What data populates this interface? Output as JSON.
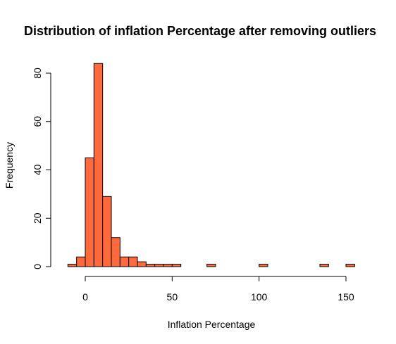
{
  "chart_data": {
    "type": "bar",
    "title": "Distribution of inflation Percentage after removing outliers",
    "xlabel": "Inflation Percentage",
    "ylabel": "Frequency",
    "bar_color": "#FF6A3D",
    "bin_width": 5,
    "xlim": [
      -10,
      155
    ],
    "ylim": [
      0,
      84
    ],
    "x_ticks": [
      0,
      50,
      100,
      150
    ],
    "y_ticks": [
      0,
      20,
      40,
      60,
      80
    ],
    "bins": [
      {
        "start": -10,
        "end": -5,
        "count": 1
      },
      {
        "start": -5,
        "end": 0,
        "count": 4
      },
      {
        "start": 0,
        "end": 5,
        "count": 45
      },
      {
        "start": 5,
        "end": 10,
        "count": 84
      },
      {
        "start": 10,
        "end": 15,
        "count": 29
      },
      {
        "start": 15,
        "end": 20,
        "count": 12
      },
      {
        "start": 20,
        "end": 25,
        "count": 4
      },
      {
        "start": 25,
        "end": 30,
        "count": 4
      },
      {
        "start": 30,
        "end": 35,
        "count": 2
      },
      {
        "start": 35,
        "end": 40,
        "count": 1
      },
      {
        "start": 40,
        "end": 45,
        "count": 1
      },
      {
        "start": 45,
        "end": 50,
        "count": 1
      },
      {
        "start": 50,
        "end": 55,
        "count": 1
      },
      {
        "start": 55,
        "end": 60,
        "count": 0
      },
      {
        "start": 60,
        "end": 65,
        "count": 0
      },
      {
        "start": 65,
        "end": 70,
        "count": 0
      },
      {
        "start": 70,
        "end": 75,
        "count": 1
      },
      {
        "start": 75,
        "end": 80,
        "count": 0
      },
      {
        "start": 80,
        "end": 85,
        "count": 0
      },
      {
        "start": 85,
        "end": 90,
        "count": 0
      },
      {
        "start": 90,
        "end": 95,
        "count": 0
      },
      {
        "start": 95,
        "end": 100,
        "count": 0
      },
      {
        "start": 100,
        "end": 105,
        "count": 1
      },
      {
        "start": 105,
        "end": 110,
        "count": 0
      },
      {
        "start": 110,
        "end": 115,
        "count": 0
      },
      {
        "start": 115,
        "end": 120,
        "count": 0
      },
      {
        "start": 120,
        "end": 125,
        "count": 0
      },
      {
        "start": 125,
        "end": 130,
        "count": 0
      },
      {
        "start": 130,
        "end": 135,
        "count": 0
      },
      {
        "start": 135,
        "end": 140,
        "count": 1
      },
      {
        "start": 140,
        "end": 145,
        "count": 0
      },
      {
        "start": 145,
        "end": 150,
        "count": 0
      },
      {
        "start": 150,
        "end": 155,
        "count": 1
      }
    ]
  }
}
